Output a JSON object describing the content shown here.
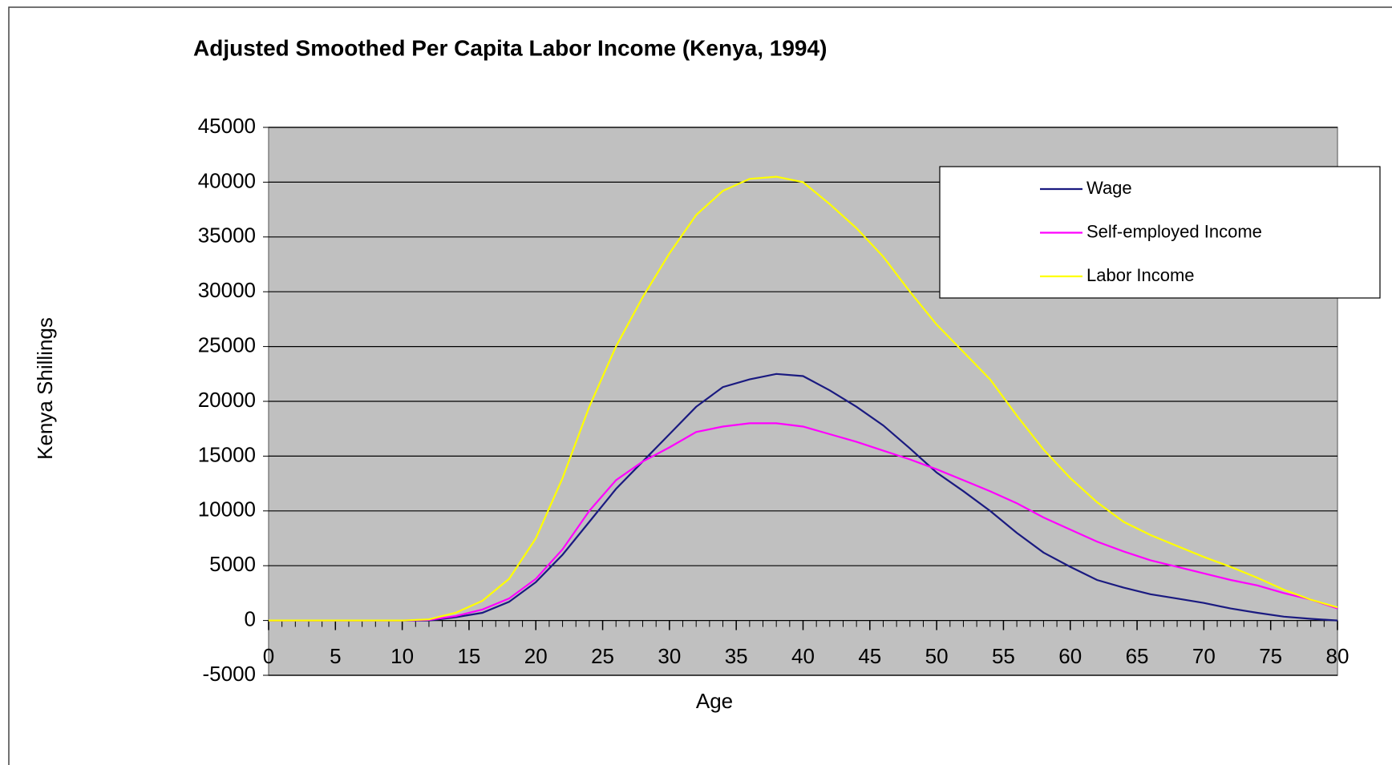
{
  "chart_data": {
    "type": "line",
    "title": "Adjusted Smoothed Per Capita Labor Income (Kenya, 1994)",
    "xlabel": "Age",
    "ylabel": "Kenya Shillings",
    "x": [
      0,
      2,
      4,
      6,
      8,
      10,
      12,
      14,
      16,
      18,
      20,
      22,
      24,
      26,
      28,
      30,
      32,
      34,
      36,
      38,
      40,
      42,
      44,
      46,
      48,
      50,
      52,
      54,
      56,
      58,
      60,
      62,
      64,
      66,
      68,
      70,
      72,
      74,
      76,
      78,
      80
    ],
    "series": [
      {
        "name": "Wage",
        "color": "#1a1a80",
        "values": [
          0,
          0,
          0,
          0,
          0,
          0,
          0,
          300,
          700,
          1700,
          3500,
          6000,
          9000,
          12000,
          14500,
          17000,
          19500,
          21300,
          22000,
          22500,
          22300,
          21000,
          19500,
          17800,
          15700,
          13500,
          11800,
          10000,
          8000,
          6200,
          4900,
          3700,
          3000,
          2400,
          2000,
          1600,
          1100,
          700,
          350,
          150,
          0
        ]
      },
      {
        "name": "Self-employed Income",
        "color": "#ff00ff",
        "values": [
          0,
          0,
          0,
          0,
          0,
          0,
          50,
          400,
          1000,
          2000,
          3800,
          6500,
          10000,
          12800,
          14500,
          15800,
          17200,
          17700,
          18000,
          18000,
          17700,
          17000,
          16300,
          15500,
          14700,
          13800,
          12800,
          11800,
          10700,
          9400,
          8300,
          7200,
          6300,
          5500,
          4900,
          4300,
          3700,
          3200,
          2500,
          1900,
          1100
        ]
      },
      {
        "name": "Labor Income",
        "color": "#ffff00",
        "values": [
          0,
          0,
          0,
          0,
          0,
          0,
          100,
          700,
          1800,
          3800,
          7500,
          13000,
          19500,
          25000,
          29500,
          33500,
          37000,
          39200,
          40300,
          40500,
          40000,
          38000,
          35800,
          33200,
          30000,
          27000,
          24500,
          22000,
          18700,
          15600,
          13000,
          10800,
          9000,
          7800,
          6800,
          5800,
          4900,
          3900,
          2800,
          1900,
          1200
        ]
      }
    ],
    "xlim": [
      0,
      80
    ],
    "xticks": [
      0,
      5,
      10,
      15,
      20,
      25,
      30,
      35,
      40,
      45,
      50,
      55,
      60,
      65,
      70,
      75,
      80
    ],
    "ylim": [
      -5000,
      45000
    ],
    "yticks": [
      -5000,
      0,
      5000,
      10000,
      15000,
      20000,
      25000,
      30000,
      35000,
      40000,
      45000
    ],
    "grid": true,
    "legend": "upper right"
  }
}
